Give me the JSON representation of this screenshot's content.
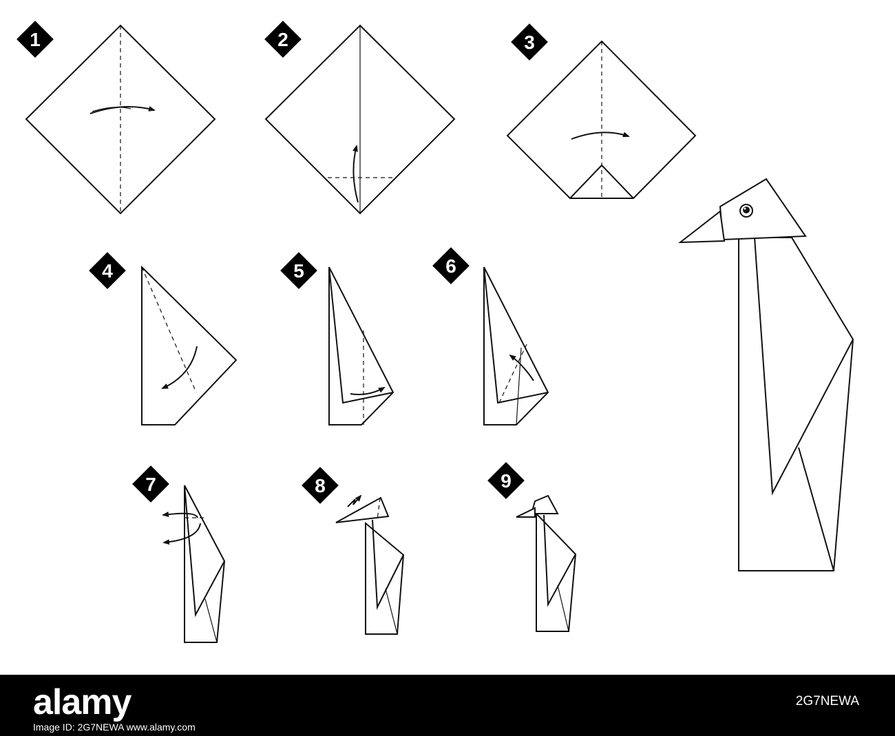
{
  "steps": [
    {
      "number": "1"
    },
    {
      "number": "2"
    },
    {
      "number": "3"
    },
    {
      "number": "4"
    },
    {
      "number": "5"
    },
    {
      "number": "6"
    },
    {
      "number": "7"
    },
    {
      "number": "8"
    },
    {
      "number": "9"
    }
  ],
  "footer": {
    "logo": "alamy",
    "image_id": "2G7NEWA",
    "info": "Image ID: 2G7NEWA  www.alamy.com"
  },
  "colors": {
    "ink": "#111111",
    "paper": "#ffffff",
    "bar": "#000000"
  }
}
